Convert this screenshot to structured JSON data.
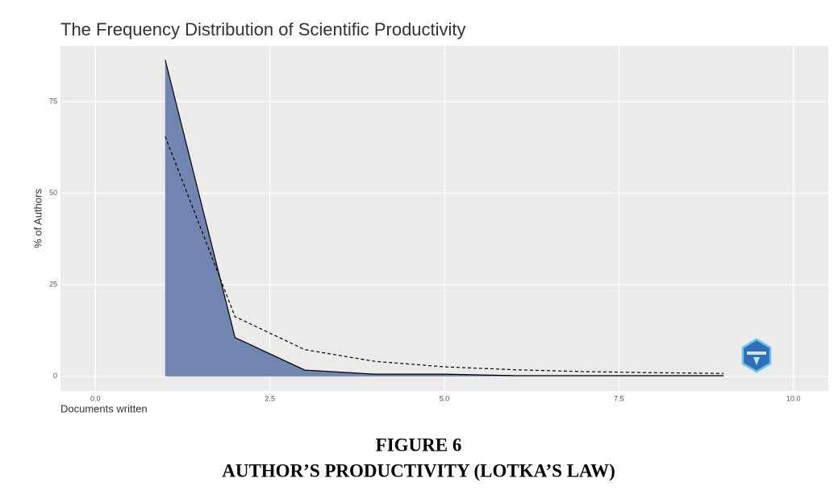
{
  "chart_data": {
    "type": "area",
    "title": "The Frequency Distribution of Scientific Productivity",
    "xlabel": "Documents written",
    "ylabel": "% of Authors",
    "x": [
      1,
      2,
      3,
      4,
      5,
      6,
      7,
      8,
      9
    ],
    "series": [
      {
        "values": [
          86.4,
          10.6,
          1.7,
          0.6,
          0.6,
          0.2,
          0.2,
          0.2,
          0.2
        ],
        "color": "#000000",
        "fill": "#7285b1"
      },
      {
        "values": [
          65.5,
          16.3,
          7.3,
          4.1,
          2.6,
          1.8,
          1.3,
          1.0,
          0.8
        ],
        "color": "#000000",
        "dashed": true
      }
    ],
    "xlim": [
      -0.5,
      10.5
    ],
    "ylim": [
      -4,
      90.2
    ],
    "xticks": [
      {
        "value": 0,
        "label": "0.0"
      },
      2.5,
      {
        "value": 5,
        "label": "5.0"
      },
      7.5,
      {
        "value": 10,
        "label": "10.0"
      }
    ],
    "yticks": [
      0,
      25,
      50,
      75
    ],
    "grid": true,
    "caption": [
      "FIGURE 6",
      "AUTHOR’S PRODUCTIVITY (LOTKA’S LAW)"
    ]
  }
}
